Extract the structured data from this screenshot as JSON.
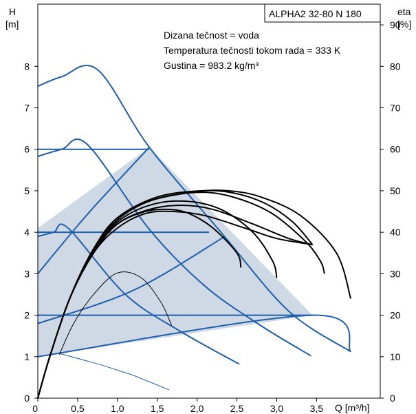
{
  "chart_data": {
    "type": "line",
    "model_label": "ALPHA2 32-80 N 180",
    "info_lines": [
      "Dizana tečnost = voda",
      "Temperatura tečnosti tokom rada = 333 K",
      "Gustina = 983.2 kg/m³"
    ],
    "y_left": {
      "label_top": "H",
      "label_unit": "[m]",
      "range": [
        0,
        9.5
      ],
      "ticks": [
        0,
        1,
        2,
        3,
        4,
        5,
        6,
        7,
        8
      ],
      "tick_labels": [
        "0",
        "1",
        "2",
        "3",
        "4",
        "5",
        "6",
        "7",
        "8"
      ]
    },
    "y_right": {
      "label_top": "eta",
      "label_unit": "[%]",
      "range": [
        0,
        95
      ],
      "ticks": [
        0,
        10,
        20,
        30,
        40,
        50,
        60,
        70,
        80,
        90
      ],
      "tick_labels": [
        "0",
        "10",
        "20",
        "30",
        "40",
        "50",
        "60",
        "70",
        "80",
        "90"
      ]
    },
    "x_axis": {
      "label": "Q [m³/h]",
      "range": [
        0,
        4.3
      ],
      "ticks": [
        0,
        0.5,
        1,
        1.5,
        2,
        2.5,
        3,
        3.5
      ],
      "tick_labels": [
        "0",
        "0,5",
        "1,0",
        "1,5",
        "2,0",
        "2,5",
        "3,0",
        "3,5"
      ]
    },
    "colors": {
      "curve_blue": "#1f5ea8",
      "region_fill": "#cfd9e6",
      "efficiency": "#000000",
      "frame": "#000000"
    },
    "operating_region": [
      [
        0,
        1.0
      ],
      [
        0,
        4.1
      ],
      [
        1.4,
        6.05
      ],
      [
        3.45,
        2.0
      ]
    ],
    "pump_curves": [
      {
        "points": [
          [
            0,
            7.52
          ],
          [
            0.3,
            7.75
          ],
          [
            0.75,
            7.92
          ],
          [
            1.4,
            6.05
          ],
          [
            2.3,
            4.0
          ],
          [
            3.15,
            2.1
          ],
          [
            3.93,
            1.12
          ]
        ]
      },
      {
        "points": [
          [
            0,
            5.83
          ],
          [
            0.3,
            6.0
          ],
          [
            0.62,
            6.12
          ],
          [
            1.4,
            4.07
          ],
          [
            2.1,
            2.7
          ],
          [
            2.8,
            1.75
          ],
          [
            3.43,
            1.02
          ]
        ]
      },
      {
        "points": [
          [
            0,
            3.9
          ],
          [
            0.2,
            4.0
          ],
          [
            0.38,
            4.1
          ],
          [
            1.1,
            2.5
          ],
          [
            1.8,
            1.6
          ],
          [
            2.53,
            0.82
          ]
        ]
      },
      {
        "points": [
          [
            0,
            3.0
          ],
          [
            0.3,
            3.7
          ],
          [
            0.7,
            4.6
          ],
          [
            1.4,
            6.05
          ]
        ]
      },
      {
        "points": [
          [
            0,
            1.8
          ],
          [
            1.2,
            2.6
          ],
          [
            2.35,
            3.9
          ]
        ]
      },
      {
        "points": [
          [
            0,
            1.0
          ],
          [
            3.45,
            2.0
          ],
          [
            3.93,
            1.12
          ]
        ]
      }
    ],
    "constant_lines": [
      {
        "points": [
          [
            0,
            6.0
          ],
          [
            1.4,
            6.0
          ]
        ]
      },
      {
        "points": [
          [
            0,
            4.0
          ],
          [
            2.15,
            4.0
          ]
        ]
      },
      {
        "points": [
          [
            0,
            2.0
          ],
          [
            3.45,
            2.0
          ]
        ]
      }
    ],
    "min_curve": {
      "points": [
        [
          0.27,
          1.08
        ],
        [
          0.8,
          0.8
        ],
        [
          1.2,
          0.55
        ],
        [
          1.65,
          0.2
        ]
      ]
    },
    "efficiency_curves": [
      {
        "points": [
          [
            0,
            0
          ],
          [
            0.15,
            10
          ],
          [
            0.4,
            24
          ],
          [
            0.7,
            35
          ],
          [
            1.0,
            41
          ],
          [
            1.35,
            44.5
          ],
          [
            1.7,
            45
          ],
          [
            2.1,
            44
          ],
          [
            2.6,
            41
          ],
          [
            3.0,
            38.5
          ],
          [
            3.45,
            37
          ]
        ]
      },
      {
        "points": [
          [
            0,
            0
          ],
          [
            0.15,
            10
          ],
          [
            0.4,
            24
          ],
          [
            0.7,
            35
          ],
          [
            1.0,
            42
          ],
          [
            1.4,
            45.5
          ],
          [
            1.8,
            46.5
          ],
          [
            2.2,
            45.5
          ],
          [
            2.7,
            42
          ],
          [
            3.15,
            38.5
          ],
          [
            3.45,
            37
          ]
        ]
      },
      {
        "points": [
          [
            0,
            0
          ],
          [
            0.15,
            10
          ],
          [
            0.4,
            24
          ],
          [
            0.7,
            35.5
          ],
          [
            1.0,
            42
          ],
          [
            1.35,
            45
          ],
          [
            1.65,
            45.5
          ],
          [
            1.9,
            44.5
          ],
          [
            2.2,
            41
          ],
          [
            2.5,
            35
          ],
          [
            2.55,
            31.5
          ]
        ]
      },
      {
        "points": [
          [
            0,
            0
          ],
          [
            0.15,
            10
          ],
          [
            0.4,
            24
          ],
          [
            0.7,
            35.5
          ],
          [
            1.0,
            42.5
          ],
          [
            1.4,
            46.5
          ],
          [
            1.85,
            47.5
          ],
          [
            2.3,
            45.5
          ],
          [
            2.7,
            40
          ],
          [
            2.95,
            33
          ],
          [
            3.0,
            29
          ]
        ]
      },
      {
        "points": [
          [
            0,
            0
          ],
          [
            0.15,
            10
          ],
          [
            0.4,
            24
          ],
          [
            0.7,
            36
          ],
          [
            1.0,
            43
          ],
          [
            1.4,
            47.5
          ],
          [
            1.9,
            49.5
          ],
          [
            2.35,
            49
          ],
          [
            2.9,
            45
          ],
          [
            3.35,
            38
          ],
          [
            3.55,
            33
          ],
          [
            3.6,
            30
          ]
        ]
      },
      {
        "points": [
          [
            0,
            0
          ],
          [
            0.15,
            10
          ],
          [
            0.4,
            24
          ],
          [
            0.7,
            36
          ],
          [
            1.0,
            43
          ],
          [
            1.4,
            47.5
          ],
          [
            2.0,
            49.8
          ],
          [
            2.4,
            50
          ],
          [
            2.8,
            48.5
          ],
          [
            3.3,
            44
          ],
          [
            3.75,
            35
          ],
          [
            3.93,
            24
          ]
        ]
      },
      {
        "points": [
          [
            0,
            0
          ],
          [
            0.15,
            10
          ],
          [
            0.4,
            24
          ],
          [
            0.7,
            36
          ],
          [
            1.0,
            43.5
          ],
          [
            1.5,
            48.5
          ],
          [
            2.05,
            50
          ],
          [
            2.45,
            49.5
          ],
          [
            2.85,
            47
          ],
          [
            3.2,
            42.5
          ],
          [
            3.45,
            37
          ]
        ]
      }
    ],
    "thin_efficiency_curve": {
      "points": [
        [
          0.27,
          10.5
        ],
        [
          0.45,
          18
        ],
        [
          0.7,
          25
        ],
        [
          1.0,
          30.2
        ],
        [
          1.3,
          29
        ],
        [
          1.55,
          23
        ],
        [
          1.68,
          17.5
        ]
      ]
    }
  }
}
